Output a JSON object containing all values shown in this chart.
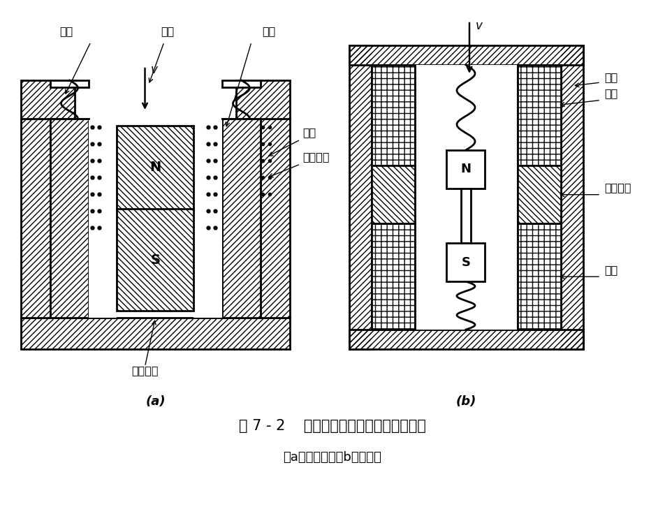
{
  "title_main": "图 7 - 2    恒磁通式磁电传感器结构原理图",
  "title_sub": "（a）动圈式；（b）动铁式",
  "label_a_spring": "弹簧",
  "label_a_v": "v",
  "label_a_pole": "极掌",
  "label_a_coil": "线圈",
  "label_a_magrod": "磁轭",
  "label_a_compcoil": "补偿线圈",
  "label_a_magnet": "永久磁铁",
  "label_a": "(a)",
  "label_b_v": "v",
  "label_b_shell": "壳体",
  "label_b_coil": "线圈",
  "label_b_magnet": "永久磁铁",
  "label_b_spring": "弹簧",
  "label_b": "(b)",
  "bg_color": "#ffffff",
  "line_color": "#000000"
}
